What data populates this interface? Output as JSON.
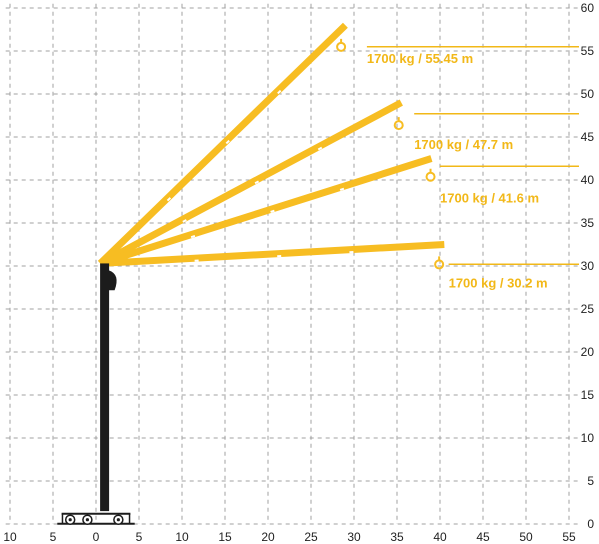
{
  "chart_data": {
    "type": "line",
    "title": "",
    "xlabel": "",
    "ylabel": "",
    "x_ticks": [
      "10",
      "5",
      "0",
      "5",
      "10",
      "15",
      "20",
      "25",
      "30",
      "35",
      "40",
      "45",
      "50",
      "55"
    ],
    "x_tick_values": [
      -10,
      -5,
      0,
      5,
      10,
      15,
      20,
      25,
      30,
      35,
      40,
      45,
      50,
      55
    ],
    "y_ticks": [
      "0",
      "5",
      "10",
      "15",
      "20",
      "25",
      "30",
      "35",
      "40",
      "45",
      "50",
      "55",
      "60"
    ],
    "y_tick_values": [
      0,
      5,
      10,
      15,
      20,
      25,
      30,
      35,
      40,
      45,
      50,
      55,
      60
    ],
    "xlim": [
      -10.5,
      56
    ],
    "ylim": [
      0,
      60.5
    ],
    "grid": true,
    "colors": {
      "boom": "#f7bd22",
      "label": "#f2b818",
      "mast": "#1c1c1c",
      "grid": "#a0a0a0"
    },
    "pivot": {
      "x": 0.5,
      "y": 30.3
    },
    "mast": {
      "x": 1,
      "y_bottom": 1.5,
      "y_top": 30.3
    },
    "series": [
      {
        "label": "1700 kg / 55.45 m",
        "tip": [
          29,
          58
        ],
        "hook": [
          28.5,
          55.6
        ],
        "label_at": [
          31.5,
          53.6
        ],
        "line_from": 31.5,
        "line_to": 55,
        "line_y": 55.5
      },
      {
        "label": "1700 kg / 47.7 m",
        "tip": [
          35.5,
          49
        ],
        "hook": [
          35.2,
          46.5
        ],
        "label_at": [
          37,
          43.6
        ],
        "line_from": 37,
        "line_to": 55,
        "line_y": 47.7
      },
      {
        "label": "1700 kg / 41.6 m",
        "tip": [
          39,
          42.5
        ],
        "hook": [
          38.9,
          40.5
        ],
        "label_at": [
          40,
          37.4
        ],
        "line_from": 40,
        "line_to": 55,
        "line_y": 41.6
      },
      {
        "label": "1700 kg / 30.2 m",
        "tip": [
          40.5,
          32.5
        ],
        "hook": [
          39.9,
          30.3
        ],
        "label_at": [
          41,
          27.5
        ],
        "line_from": 41,
        "line_to": 55,
        "line_y": 30.2
      }
    ]
  }
}
